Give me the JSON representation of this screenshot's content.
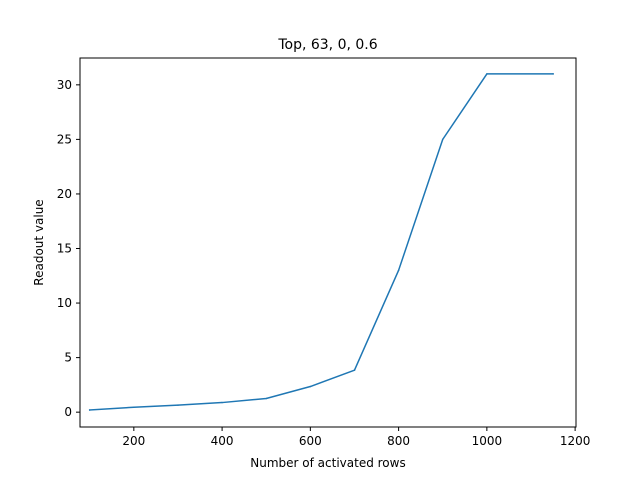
{
  "chart_data": {
    "type": "line",
    "title": "Top, 63, 0, 0.6",
    "xlabel": "Number of activated rows",
    "ylabel": "Readout value",
    "xlim": [
      78,
      1202
    ],
    "ylim": [
      -1.36,
      32.46
    ],
    "xticks": [
      200,
      400,
      600,
      800,
      1000,
      1200
    ],
    "yticks": [
      0,
      5,
      10,
      15,
      20,
      25,
      30
    ],
    "grid": false,
    "legend": "none",
    "series": [
      {
        "color": "#1f77b4",
        "x": [
          100,
          200,
          300,
          400,
          500,
          600,
          700,
          800,
          900,
          1000,
          1150
        ],
        "y": [
          0.2,
          0.45,
          0.65,
          0.88,
          1.25,
          2.35,
          3.85,
          13.0,
          25.0,
          31.0,
          31.0
        ]
      }
    ]
  }
}
